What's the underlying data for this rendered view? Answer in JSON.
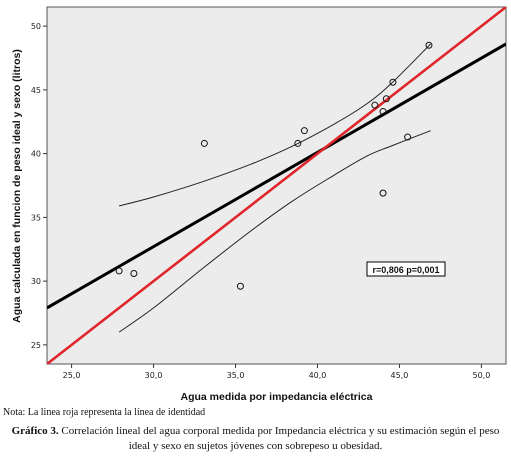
{
  "chart_data": {
    "type": "scatter",
    "xlabel": "Agua medida por impedancia eléctrica",
    "ylabel": "Agua calculada en funcion de peso ideal y sexo (litros)",
    "xlim": [
      23.5,
      51.5
    ],
    "ylim": [
      23.5,
      51.5
    ],
    "xticks": [
      "25,0",
      "30,0",
      "35,0",
      "40,0",
      "45,0",
      "50,0"
    ],
    "yticks": [
      "25",
      "30",
      "35",
      "40",
      "45",
      "50"
    ],
    "grid": false,
    "points": [
      {
        "x": 27.9,
        "y": 30.8
      },
      {
        "x": 28.8,
        "y": 30.6
      },
      {
        "x": 33.1,
        "y": 40.8
      },
      {
        "x": 35.3,
        "y": 29.6
      },
      {
        "x": 38.8,
        "y": 40.8
      },
      {
        "x": 39.2,
        "y": 41.8
      },
      {
        "x": 43.5,
        "y": 43.8
      },
      {
        "x": 44.0,
        "y": 43.3
      },
      {
        "x": 44.0,
        "y": 36.9
      },
      {
        "x": 44.2,
        "y": 44.3
      },
      {
        "x": 44.6,
        "y": 45.6
      },
      {
        "x": 45.5,
        "y": 41.3
      },
      {
        "x": 46.8,
        "y": 48.5
      }
    ],
    "regression_line": {
      "x": [
        23.5,
        51.5
      ],
      "y": [
        27.9,
        48.6
      ],
      "color": "#000000"
    },
    "identity_line": {
      "x": [
        23.5,
        51.5
      ],
      "y": [
        23.5,
        51.5
      ],
      "color": "#e0262b"
    },
    "confidence_upper": {
      "x": [
        27.9,
        30.0,
        33.0,
        36.0,
        38.5,
        41.0,
        43.0,
        44.5,
        46.9
      ],
      "y": [
        35.9,
        36.6,
        37.8,
        39.2,
        40.6,
        42.3,
        43.9,
        45.5,
        48.6
      ]
    },
    "confidence_lower": {
      "x": [
        27.9,
        30.0,
        33.0,
        36.0,
        38.5,
        41.0,
        43.0,
        44.5,
        46.9
      ],
      "y": [
        26.0,
        27.9,
        31.0,
        34.0,
        36.3,
        38.3,
        39.8,
        40.6,
        41.8
      ]
    },
    "annotation": "r=0,806  p=0,001",
    "colors": {
      "plot_background": "#ececec",
      "regression": "#000000",
      "identity": "#e0262b"
    }
  },
  "note": "Nota: La linea roja representa la línea de identidad",
  "caption": {
    "label": "Gráfico 3.",
    "text": " Correlación lineal del agua corporal medida por Impedancia eléctrica y su estimación según el peso ideal y sexo en sujetos jóvenes con sobrepeso u obesidad."
  }
}
